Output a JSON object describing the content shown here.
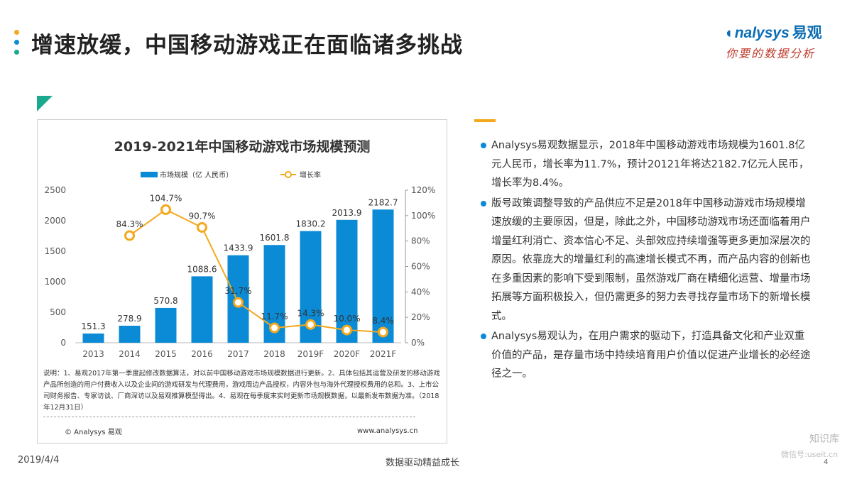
{
  "header": {
    "title": "增速放缓，中国移动游戏正在面临诸多挑战",
    "dot_colors": [
      "#f4a81d",
      "#0b8bd6",
      "#1aa98f"
    ],
    "logo_main": "nalysys",
    "logo_cn": "易观",
    "logo_sub": "你要的数据分析"
  },
  "chart_data": {
    "type": "bar",
    "title": "2019-2021年中国移动游戏市场规模预测",
    "categories": [
      "2013",
      "2014",
      "2015",
      "2016",
      "2017",
      "2018",
      "2019F",
      "2020F",
      "2021F"
    ],
    "series": [
      {
        "name": "市场规模（亿 人民币）",
        "type": "bar",
        "axis": "left",
        "color": "#0b8bd6",
        "values": [
          151.3,
          278.9,
          570.8,
          1088.6,
          1433.9,
          1601.8,
          1830.2,
          2013.9,
          2182.7
        ],
        "labels": [
          "151.3",
          "278.9",
          "570.8",
          "1088.6",
          "1433.9",
          "1601.8",
          "1830.2",
          "2013.9",
          "2182.7"
        ]
      },
      {
        "name": "增长率",
        "type": "line",
        "axis": "right",
        "color": "#f4a81d",
        "values": [
          null,
          84.3,
          104.7,
          90.7,
          31.7,
          11.7,
          14.3,
          10.0,
          8.4
        ],
        "labels": [
          "",
          "84.3%",
          "104.7%",
          "90.7%",
          "31.7%",
          "11.7%",
          "14.3%",
          "10.0%",
          "8.4%"
        ]
      }
    ],
    "ylim_left": [
      0,
      2500
    ],
    "yticks_left": [
      "0",
      "500",
      "1000",
      "1500",
      "2000",
      "2500"
    ],
    "ylim_right": [
      0,
      120
    ],
    "yticks_right": [
      "0%",
      "20%",
      "40%",
      "60%",
      "80%",
      "100%",
      "120%"
    ],
    "legend_position": "top-center"
  },
  "chart_notes": {
    "text": "说明：1、易观2017年第一季度起修改数据算法，对以前中国移动游戏市场规模数据进行更新。2、具体包括其运营及研发的移动游戏产品所创造的用户付费收入以及企业间的游戏研发与代理费用，游戏周边产品授权，内容外包与海外代理授权费用的总和。3、上市公司财务报告、专家访谈、厂商深访以及易观推算模型得出。4、易观在每季度末实时更新市场规模数据，以最新发布数据为准。（2018年12月31日）",
    "copyright": "© Analysys 易观",
    "website": "www.analysys.cn"
  },
  "bullets": [
    "Analysys易观数据显示，2018年中国移动游戏市场规模为1601.8亿元人民币，增长率为11.7%，预计20121年将达2182.7亿元人民币，增长率为8.4%。",
    "版号政策调整导致的产品供应不足是2018年中国移动游戏市场规模增速放缓的主要原因，但是，除此之外，中国移动游戏市场还面临着用户增量红利消亡、资本信心不足、头部效应持续增强等更多更加深层次的原因。依靠庞大的增量红利的高速增长模式不再，而产品内容的创新也在多重因素的影响下受到限制，虽然游戏厂商在精细化运营、增量市场拓展等方面积极投入，但仍需更多的努力去寻找存量市场下的新增长模式。",
    "Analysys易观认为，在用户需求的驱动下，打造具备文化和产业双重价值的产品，是存量市场中持续培育用户价值以促进产业增长的必经途径之一。"
  ],
  "footer": {
    "date": "2019/4/4",
    "center": "数据驱动精益成长",
    "page": "4",
    "watermark_title": "知识库",
    "watermark_sub": "微信号:useit.cn"
  }
}
